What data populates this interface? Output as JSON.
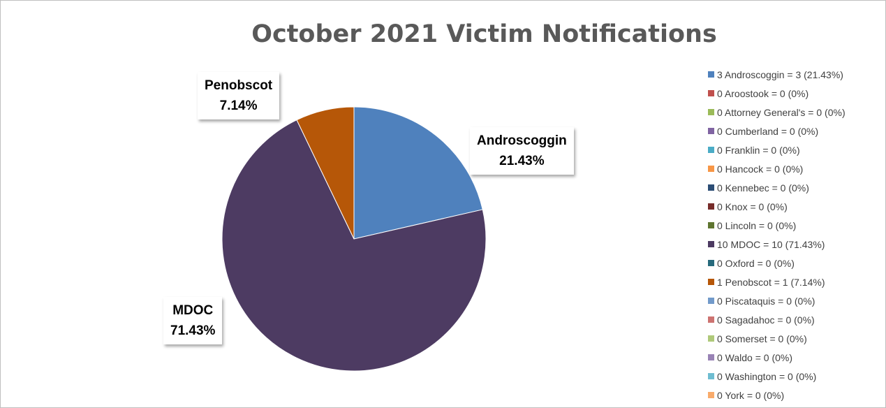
{
  "chart_data": {
    "type": "pie",
    "title": "October 2021 Victim Notifications",
    "slices": [
      {
        "name": "Androscoggin",
        "value": 3,
        "percent": 21.43,
        "color": "#4f81bd",
        "label_name": "Androscoggin",
        "label_pct": "21.43%",
        "legend": "3 Androscoggin = 3 (21.43%)"
      },
      {
        "name": "Aroostook",
        "value": 0,
        "percent": 0,
        "color": "#c0504d",
        "legend": "0 Aroostook = 0 (0%)"
      },
      {
        "name": "Attorney General's",
        "value": 0,
        "percent": 0,
        "color": "#9bbb59",
        "legend": "0 Attorney General's = 0 (0%)"
      },
      {
        "name": "Cumberland",
        "value": 0,
        "percent": 0,
        "color": "#8064a2",
        "legend": "0 Cumberland = 0 (0%)"
      },
      {
        "name": "Franklin",
        "value": 0,
        "percent": 0,
        "color": "#4bacc6",
        "legend": "0 Franklin = 0 (0%)"
      },
      {
        "name": "Hancock",
        "value": 0,
        "percent": 0,
        "color": "#f79646",
        "legend": "0 Hancock = 0 (0%)"
      },
      {
        "name": "Kennebec",
        "value": 0,
        "percent": 0,
        "color": "#2c4d75",
        "legend": "0 Kennebec = 0 (0%)"
      },
      {
        "name": "Knox",
        "value": 0,
        "percent": 0,
        "color": "#772c2a",
        "legend": "0 Knox = 0 (0%)"
      },
      {
        "name": "Lincoln",
        "value": 0,
        "percent": 0,
        "color": "#5f7530",
        "legend": "0 Lincoln = 0 (0%)"
      },
      {
        "name": "MDOC",
        "value": 10,
        "percent": 71.43,
        "color": "#4d3b62",
        "label_name": "MDOC",
        "label_pct": "71.43%",
        "legend": "10 MDOC = 10 (71.43%)"
      },
      {
        "name": "Oxford",
        "value": 0,
        "percent": 0,
        "color": "#276a7c",
        "legend": "0 Oxford = 0 (0%)"
      },
      {
        "name": "Penobscot",
        "value": 1,
        "percent": 7.14,
        "color": "#b65708",
        "label_name": "Penobscot",
        "label_pct": "7.14%",
        "legend": "1 Penobscot = 1 (7.14%)"
      },
      {
        "name": "Piscataquis",
        "value": 0,
        "percent": 0,
        "color": "#729aca",
        "legend": "0 Piscataquis = 0 (0%)"
      },
      {
        "name": "Sagadahoc",
        "value": 0,
        "percent": 0,
        "color": "#cd7371",
        "legend": "0 Sagadahoc = 0 (0%)"
      },
      {
        "name": "Somerset",
        "value": 0,
        "percent": 0,
        "color": "#afc97a",
        "legend": "0 Somerset = 0 (0%)"
      },
      {
        "name": "Waldo",
        "value": 0,
        "percent": 0,
        "color": "#9983b5",
        "legend": "0 Waldo = 0 (0%)"
      },
      {
        "name": "Washington",
        "value": 0,
        "percent": 0,
        "color": "#6fbdd1",
        "legend": "0 Washington = 0 (0%)"
      },
      {
        "name": "York",
        "value": 0,
        "percent": 0,
        "color": "#f9ab6b",
        "legend": "0 York = 0 (0%)"
      }
    ],
    "legend_position": "right"
  }
}
